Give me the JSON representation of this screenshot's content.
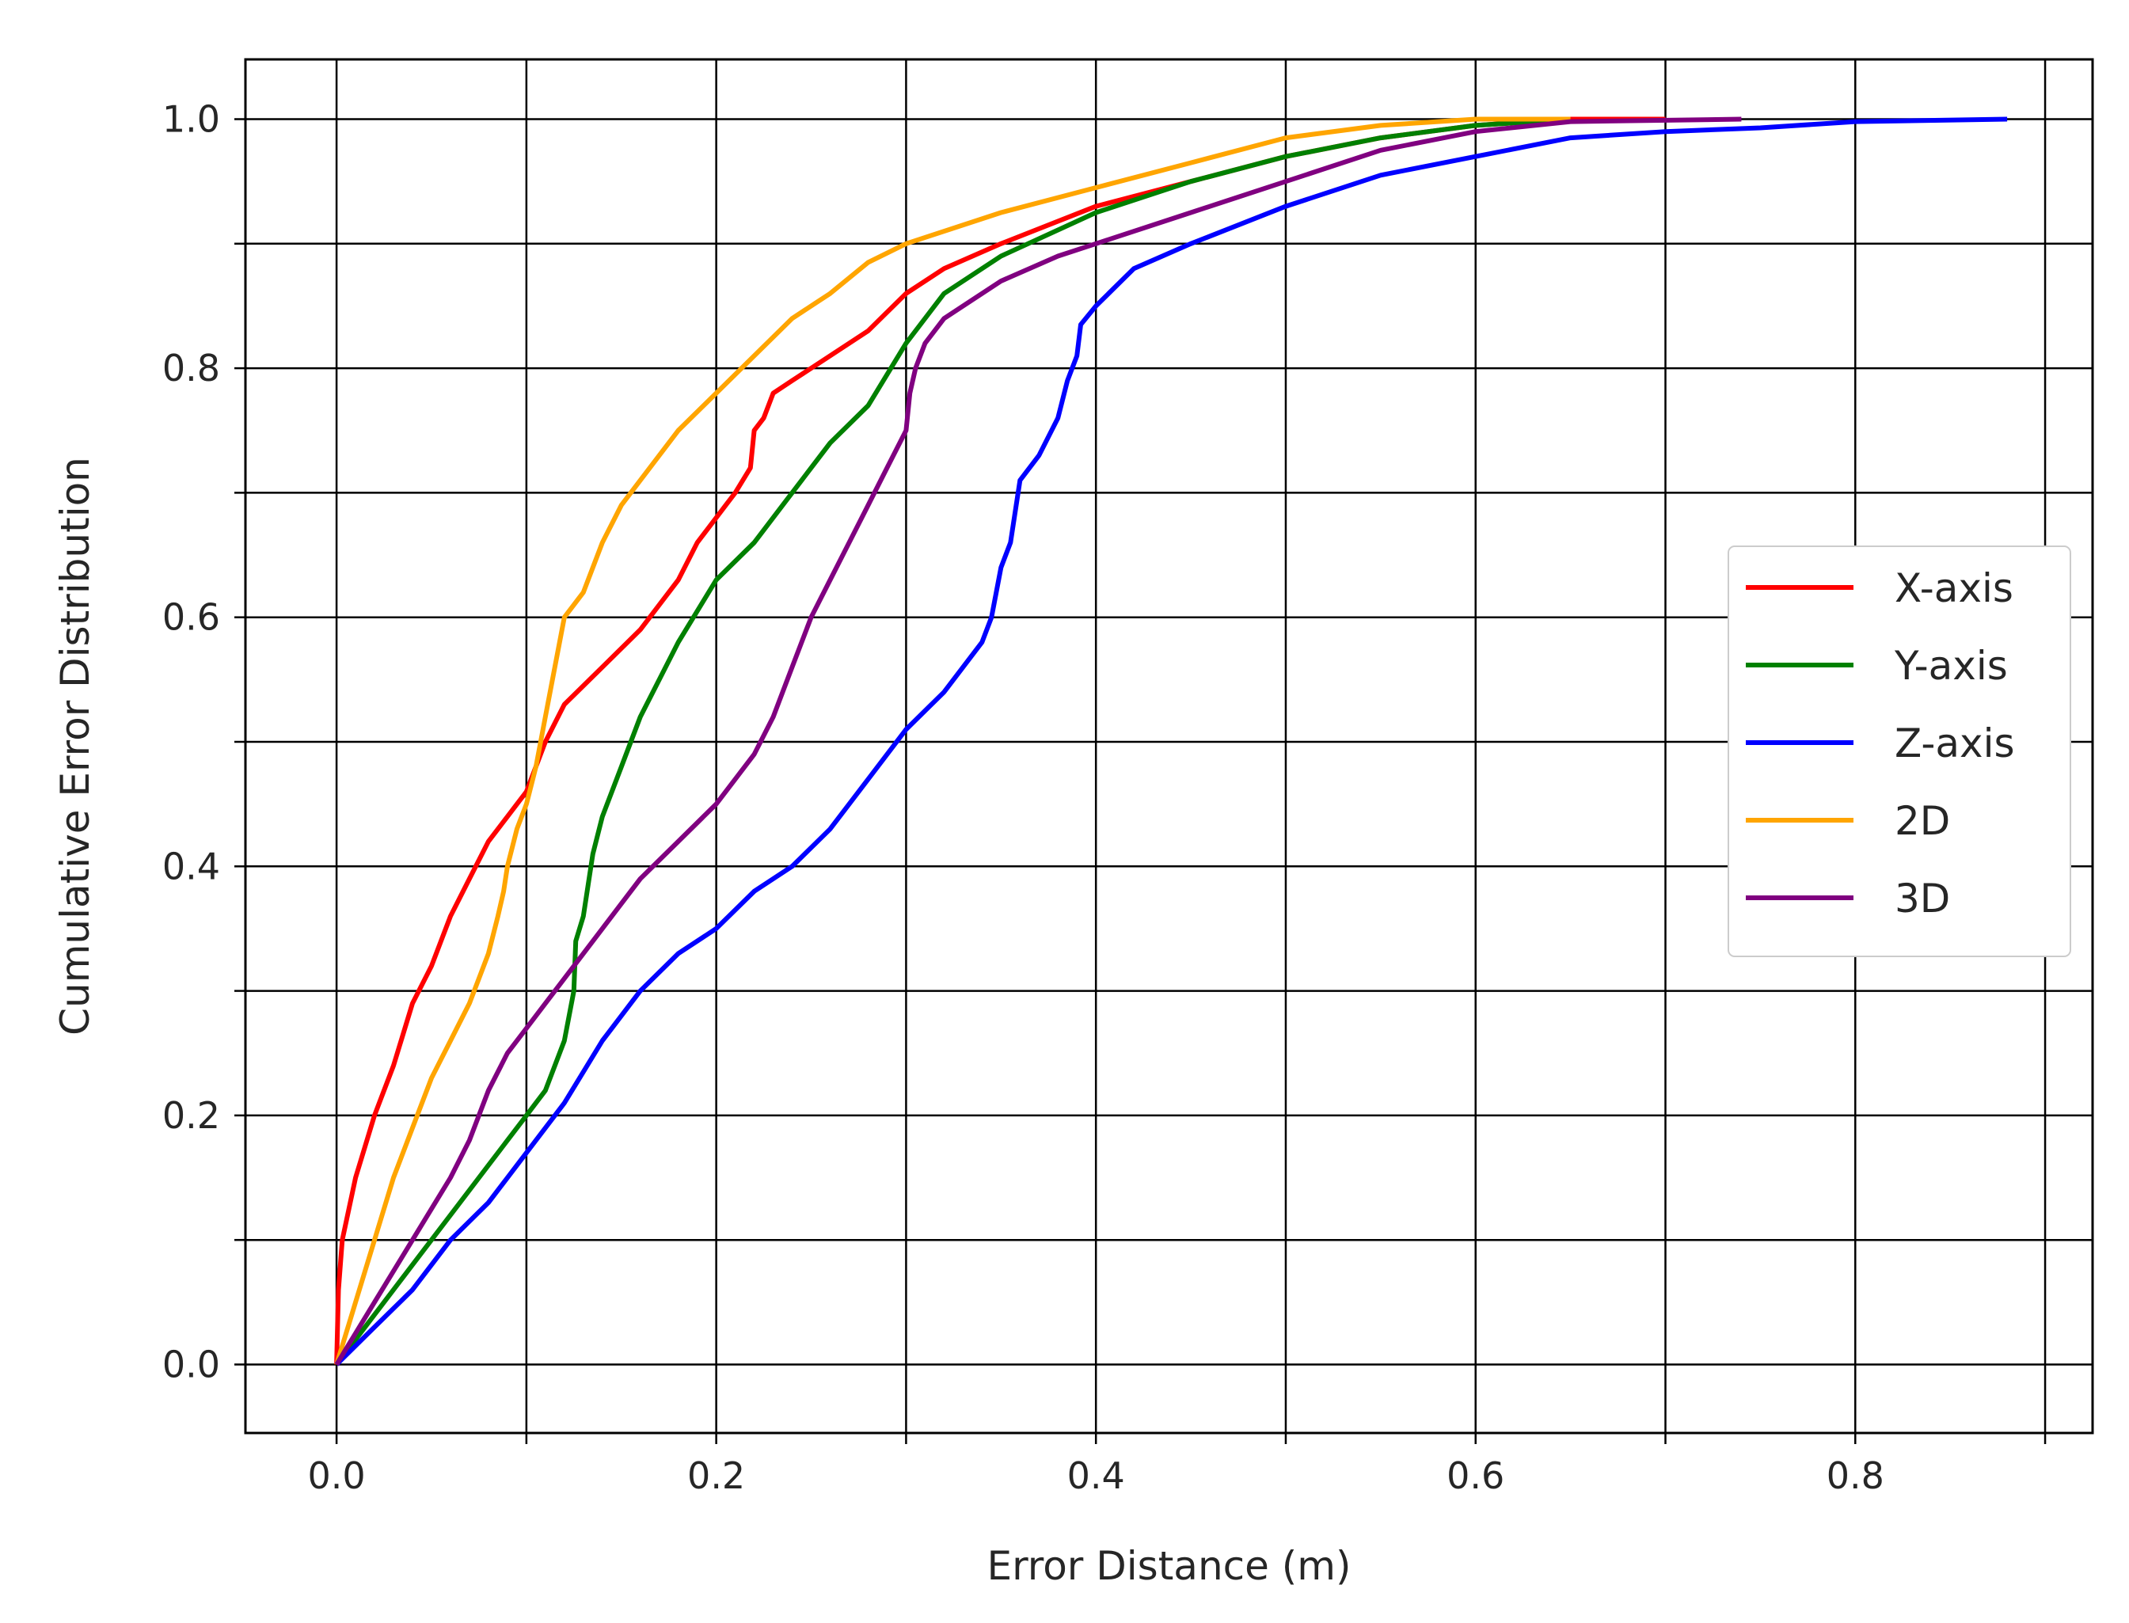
{
  "chart_data": {
    "type": "line",
    "title": "",
    "xlabel": "Error Distance (m)",
    "ylabel": "Cumulative Error Distribution",
    "xlim": [
      -0.048,
      0.925
    ],
    "ylim": [
      -0.055,
      1.048
    ],
    "xticks": [
      0.0,
      0.1,
      0.2,
      0.3,
      0.4,
      0.5,
      0.6,
      0.7,
      0.8,
      0.9
    ],
    "xtick_labels": [
      "0.0",
      "",
      "0.2",
      "",
      "0.4",
      "",
      "0.6",
      "",
      "0.8",
      ""
    ],
    "yticks": [
      0.0,
      0.1,
      0.2,
      0.3,
      0.4,
      0.5,
      0.6,
      0.7,
      0.8,
      0.9,
      1.0
    ],
    "ytick_labels": [
      "0.0",
      "",
      "0.2",
      "",
      "0.4",
      "",
      "0.6",
      "",
      "0.8",
      "",
      "1.0"
    ],
    "grid": true,
    "legend_position": "center-right",
    "series": [
      {
        "name": "X-axis",
        "color": "#ff0000",
        "points": [
          [
            0,
            0
          ],
          [
            0.001,
            0.06
          ],
          [
            0.003,
            0.1
          ],
          [
            0.01,
            0.15
          ],
          [
            0.02,
            0.2
          ],
          [
            0.03,
            0.24
          ],
          [
            0.04,
            0.29
          ],
          [
            0.05,
            0.32
          ],
          [
            0.06,
            0.36
          ],
          [
            0.07,
            0.39
          ],
          [
            0.08,
            0.42
          ],
          [
            0.09,
            0.44
          ],
          [
            0.1,
            0.46
          ],
          [
            0.11,
            0.5
          ],
          [
            0.12,
            0.53
          ],
          [
            0.14,
            0.56
          ],
          [
            0.16,
            0.59
          ],
          [
            0.18,
            0.63
          ],
          [
            0.19,
            0.66
          ],
          [
            0.2,
            0.68
          ],
          [
            0.21,
            0.7
          ],
          [
            0.218,
            0.72
          ],
          [
            0.22,
            0.75
          ],
          [
            0.225,
            0.76
          ],
          [
            0.23,
            0.78
          ],
          [
            0.24,
            0.79
          ],
          [
            0.26,
            0.81
          ],
          [
            0.28,
            0.83
          ],
          [
            0.3,
            0.86
          ],
          [
            0.32,
            0.88
          ],
          [
            0.35,
            0.9
          ],
          [
            0.4,
            0.93
          ],
          [
            0.45,
            0.95
          ],
          [
            0.5,
            0.97
          ],
          [
            0.55,
            0.985
          ],
          [
            0.6,
            0.995
          ],
          [
            0.65,
            1.0
          ],
          [
            0.7,
            1.0
          ]
        ]
      },
      {
        "name": "Y-axis",
        "color": "#008000",
        "points": [
          [
            0,
            0
          ],
          [
            0.02,
            0.04
          ],
          [
            0.04,
            0.08
          ],
          [
            0.06,
            0.12
          ],
          [
            0.08,
            0.16
          ],
          [
            0.1,
            0.2
          ],
          [
            0.11,
            0.22
          ],
          [
            0.12,
            0.26
          ],
          [
            0.125,
            0.3
          ],
          [
            0.126,
            0.34
          ],
          [
            0.13,
            0.36
          ],
          [
            0.135,
            0.41
          ],
          [
            0.14,
            0.44
          ],
          [
            0.15,
            0.48
          ],
          [
            0.16,
            0.52
          ],
          [
            0.18,
            0.58
          ],
          [
            0.2,
            0.63
          ],
          [
            0.22,
            0.66
          ],
          [
            0.24,
            0.7
          ],
          [
            0.26,
            0.74
          ],
          [
            0.28,
            0.77
          ],
          [
            0.3,
            0.82
          ],
          [
            0.32,
            0.86
          ],
          [
            0.35,
            0.89
          ],
          [
            0.4,
            0.925
          ],
          [
            0.45,
            0.95
          ],
          [
            0.5,
            0.97
          ],
          [
            0.55,
            0.985
          ],
          [
            0.6,
            0.995
          ],
          [
            0.65,
            1.0
          ]
        ]
      },
      {
        "name": "Z-axis",
        "color": "#0000ff",
        "points": [
          [
            0,
            0
          ],
          [
            0.02,
            0.03
          ],
          [
            0.04,
            0.06
          ],
          [
            0.06,
            0.1
          ],
          [
            0.08,
            0.13
          ],
          [
            0.1,
            0.17
          ],
          [
            0.12,
            0.21
          ],
          [
            0.14,
            0.26
          ],
          [
            0.16,
            0.3
          ],
          [
            0.18,
            0.33
          ],
          [
            0.2,
            0.35
          ],
          [
            0.22,
            0.38
          ],
          [
            0.24,
            0.4
          ],
          [
            0.26,
            0.43
          ],
          [
            0.28,
            0.47
          ],
          [
            0.3,
            0.51
          ],
          [
            0.32,
            0.54
          ],
          [
            0.34,
            0.58
          ],
          [
            0.345,
            0.6
          ],
          [
            0.35,
            0.64
          ],
          [
            0.355,
            0.66
          ],
          [
            0.36,
            0.71
          ],
          [
            0.37,
            0.73
          ],
          [
            0.38,
            0.76
          ],
          [
            0.385,
            0.79
          ],
          [
            0.39,
            0.81
          ],
          [
            0.392,
            0.835
          ],
          [
            0.4,
            0.85
          ],
          [
            0.42,
            0.88
          ],
          [
            0.45,
            0.9
          ],
          [
            0.5,
            0.93
          ],
          [
            0.55,
            0.955
          ],
          [
            0.6,
            0.97
          ],
          [
            0.65,
            0.985
          ],
          [
            0.7,
            0.99
          ],
          [
            0.75,
            0.993
          ],
          [
            0.8,
            0.998
          ],
          [
            0.88,
            1.0
          ]
        ]
      },
      {
        "name": "2D",
        "color": "#ffa500",
        "points": [
          [
            0,
            0
          ],
          [
            0.01,
            0.05
          ],
          [
            0.02,
            0.1
          ],
          [
            0.03,
            0.15
          ],
          [
            0.04,
            0.19
          ],
          [
            0.05,
            0.23
          ],
          [
            0.06,
            0.26
          ],
          [
            0.07,
            0.29
          ],
          [
            0.075,
            0.31
          ],
          [
            0.08,
            0.33
          ],
          [
            0.085,
            0.36
          ],
          [
            0.088,
            0.38
          ],
          [
            0.09,
            0.4
          ],
          [
            0.095,
            0.43
          ],
          [
            0.1,
            0.45
          ],
          [
            0.105,
            0.48
          ],
          [
            0.11,
            0.52
          ],
          [
            0.115,
            0.56
          ],
          [
            0.12,
            0.6
          ],
          [
            0.13,
            0.62
          ],
          [
            0.14,
            0.66
          ],
          [
            0.15,
            0.69
          ],
          [
            0.16,
            0.71
          ],
          [
            0.18,
            0.75
          ],
          [
            0.2,
            0.78
          ],
          [
            0.22,
            0.81
          ],
          [
            0.24,
            0.84
          ],
          [
            0.26,
            0.86
          ],
          [
            0.28,
            0.885
          ],
          [
            0.3,
            0.9
          ],
          [
            0.35,
            0.925
          ],
          [
            0.4,
            0.945
          ],
          [
            0.45,
            0.965
          ],
          [
            0.5,
            0.985
          ],
          [
            0.55,
            0.995
          ],
          [
            0.6,
            1.0
          ],
          [
            0.65,
            1.0
          ]
        ]
      },
      {
        "name": "3D",
        "color": "#800080",
        "points": [
          [
            0,
            0
          ],
          [
            0.02,
            0.05
          ],
          [
            0.04,
            0.1
          ],
          [
            0.06,
            0.15
          ],
          [
            0.07,
            0.18
          ],
          [
            0.08,
            0.22
          ],
          [
            0.09,
            0.25
          ],
          [
            0.1,
            0.27
          ],
          [
            0.12,
            0.31
          ],
          [
            0.14,
            0.35
          ],
          [
            0.16,
            0.39
          ],
          [
            0.18,
            0.42
          ],
          [
            0.2,
            0.45
          ],
          [
            0.21,
            0.47
          ],
          [
            0.22,
            0.49
          ],
          [
            0.23,
            0.52
          ],
          [
            0.24,
            0.56
          ],
          [
            0.25,
            0.6
          ],
          [
            0.26,
            0.63
          ],
          [
            0.27,
            0.66
          ],
          [
            0.28,
            0.69
          ],
          [
            0.29,
            0.72
          ],
          [
            0.3,
            0.75
          ],
          [
            0.302,
            0.78
          ],
          [
            0.305,
            0.8
          ],
          [
            0.31,
            0.82
          ],
          [
            0.32,
            0.84
          ],
          [
            0.35,
            0.87
          ],
          [
            0.38,
            0.89
          ],
          [
            0.4,
            0.9
          ],
          [
            0.45,
            0.925
          ],
          [
            0.5,
            0.95
          ],
          [
            0.55,
            0.975
          ],
          [
            0.6,
            0.99
          ],
          [
            0.65,
            0.998
          ],
          [
            0.74,
            1.0
          ]
        ]
      }
    ]
  }
}
